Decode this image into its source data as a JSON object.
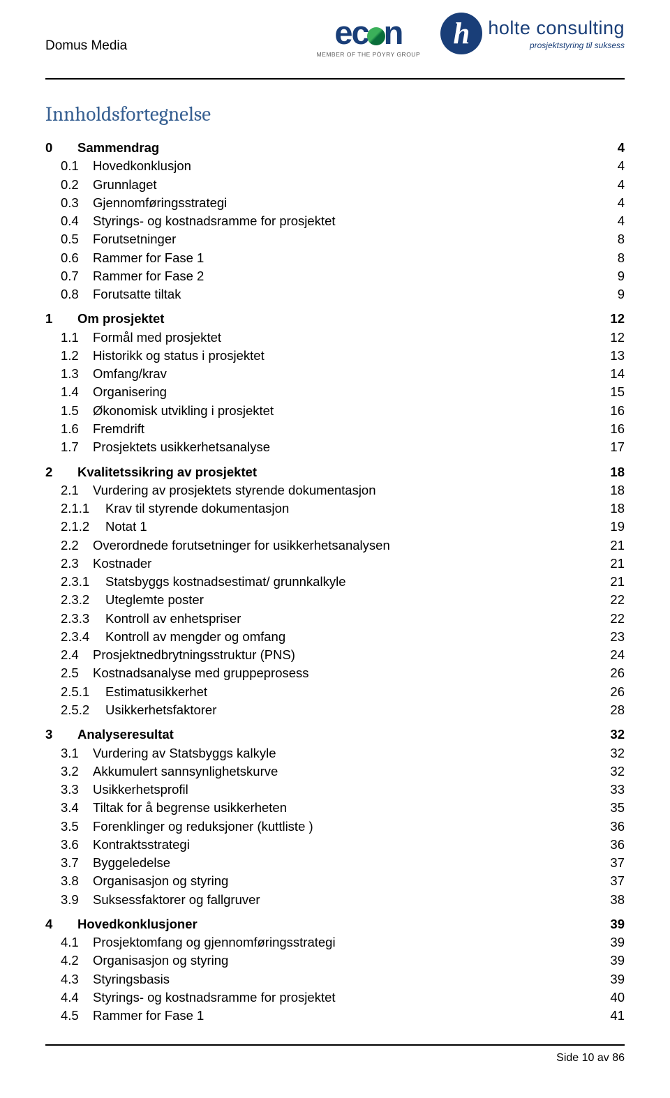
{
  "header": {
    "doc_title": "Domus Media",
    "econ": {
      "name": "econ",
      "sub": "MEMBER OF THE PÖYRY GROUP"
    },
    "holte": {
      "name": "holte consulting",
      "tag": "prosjektstyring til suksess"
    }
  },
  "toc_title": "Innholdsfortegnelse",
  "toc": [
    {
      "lvl": 1,
      "num": "0",
      "label": "Sammendrag",
      "page": "4",
      "bold": true,
      "first": true
    },
    {
      "lvl": 2,
      "num": "0.1",
      "label": "Hovedkonklusjon",
      "page": "4"
    },
    {
      "lvl": 2,
      "num": "0.2",
      "label": "Grunnlaget",
      "page": "4"
    },
    {
      "lvl": 2,
      "num": "0.3",
      "label": "Gjennomføringsstrategi",
      "page": "4"
    },
    {
      "lvl": 2,
      "num": "0.4",
      "label": "Styrings- og kostnadsramme for prosjektet",
      "page": "4"
    },
    {
      "lvl": 2,
      "num": "0.5",
      "label": "Forutsetninger",
      "page": "8"
    },
    {
      "lvl": 2,
      "num": "0.6",
      "label": "Rammer for Fase 1",
      "page": "8"
    },
    {
      "lvl": 2,
      "num": "0.7",
      "label": "Rammer for Fase 2",
      "page": "9"
    },
    {
      "lvl": 2,
      "num": "0.8",
      "label": "Forutsatte tiltak",
      "page": "9"
    },
    {
      "lvl": 1,
      "num": "1",
      "label": "Om prosjektet",
      "page": "12",
      "bold": true
    },
    {
      "lvl": 2,
      "num": "1.1",
      "label": "Formål med prosjektet",
      "page": "12"
    },
    {
      "lvl": 2,
      "num": "1.2",
      "label": "Historikk og status i prosjektet",
      "page": "13"
    },
    {
      "lvl": 2,
      "num": "1.3",
      "label": "Omfang/krav",
      "page": "14"
    },
    {
      "lvl": 2,
      "num": "1.4",
      "label": "Organisering",
      "page": "15"
    },
    {
      "lvl": 2,
      "num": "1.5",
      "label": "Økonomisk utvikling i prosjektet",
      "page": "16"
    },
    {
      "lvl": 2,
      "num": "1.6",
      "label": "Fremdrift",
      "page": "16"
    },
    {
      "lvl": 2,
      "num": "1.7",
      "label": "Prosjektets usikkerhetsanalyse",
      "page": "17"
    },
    {
      "lvl": 1,
      "num": "2",
      "label": "Kvalitetssikring av prosjektet",
      "page": "18",
      "bold": true
    },
    {
      "lvl": 2,
      "num": "2.1",
      "label": "Vurdering av prosjektets styrende dokumentasjon",
      "page": "18"
    },
    {
      "lvl": 3,
      "num": "2.1.1",
      "label": "Krav til styrende dokumentasjon",
      "page": "18"
    },
    {
      "lvl": 3,
      "num": "2.1.2",
      "label": "Notat 1",
      "page": "19"
    },
    {
      "lvl": 2,
      "num": "2.2",
      "label": "Overordnede forutsetninger for usikkerhetsanalysen",
      "page": "21"
    },
    {
      "lvl": 2,
      "num": "2.3",
      "label": "Kostnader",
      "page": "21"
    },
    {
      "lvl": 3,
      "num": "2.3.1",
      "label": "Statsbyggs kostnadsestimat/ grunnkalkyle",
      "page": "21"
    },
    {
      "lvl": 3,
      "num": "2.3.2",
      "label": "Uteglemte poster",
      "page": "22"
    },
    {
      "lvl": 3,
      "num": "2.3.3",
      "label": "Kontroll av enhetspriser",
      "page": "22"
    },
    {
      "lvl": 3,
      "num": "2.3.4",
      "label": "Kontroll av mengder og omfang",
      "page": "23"
    },
    {
      "lvl": 2,
      "num": "2.4",
      "label": "Prosjektnedbrytningsstruktur (PNS)",
      "page": "24"
    },
    {
      "lvl": 2,
      "num": "2.5",
      "label": "Kostnadsanalyse med gruppeprosess",
      "page": "26"
    },
    {
      "lvl": 3,
      "num": "2.5.1",
      "label": "Estimatusikkerhet",
      "page": "26"
    },
    {
      "lvl": 3,
      "num": "2.5.2",
      "label": "Usikkerhetsfaktorer",
      "page": "28"
    },
    {
      "lvl": 1,
      "num": "3",
      "label": "Analyseresultat",
      "page": "32",
      "bold": true
    },
    {
      "lvl": 2,
      "num": "3.1",
      "label": "Vurdering av Statsbyggs kalkyle",
      "page": "32"
    },
    {
      "lvl": 2,
      "num": "3.2",
      "label": "Akkumulert sannsynlighetskurve",
      "page": "32"
    },
    {
      "lvl": 2,
      "num": "3.3",
      "label": "Usikkerhetsprofil",
      "page": "33"
    },
    {
      "lvl": 2,
      "num": "3.4",
      "label": "Tiltak for å begrense usikkerheten",
      "page": "35"
    },
    {
      "lvl": 2,
      "num": "3.5",
      "label": "Forenklinger og reduksjoner (kuttliste )",
      "page": "36"
    },
    {
      "lvl": 2,
      "num": "3.6",
      "label": "Kontraktsstrategi",
      "page": "36"
    },
    {
      "lvl": 2,
      "num": "3.7",
      "label": "Byggeledelse",
      "page": "37"
    },
    {
      "lvl": 2,
      "num": "3.8",
      "label": "Organisasjon og styring",
      "page": "37"
    },
    {
      "lvl": 2,
      "num": "3.9",
      "label": "Suksessfaktorer og fallgruver",
      "page": "38"
    },
    {
      "lvl": 1,
      "num": "4",
      "label": "Hovedkonklusjoner",
      "page": "39",
      "bold": true
    },
    {
      "lvl": 2,
      "num": "4.1",
      "label": "Prosjektomfang og gjennomføringsstrategi",
      "page": "39"
    },
    {
      "lvl": 2,
      "num": "4.2",
      "label": "Organisasjon og styring",
      "page": "39"
    },
    {
      "lvl": 2,
      "num": "4.3",
      "label": "Styringsbasis",
      "page": "39"
    },
    {
      "lvl": 2,
      "num": "4.4",
      "label": "Styrings- og kostnadsramme for prosjektet",
      "page": "40"
    },
    {
      "lvl": 2,
      "num": "4.5",
      "label": "Rammer for Fase 1",
      "page": "41"
    }
  ],
  "footer": {
    "text": "Side 10 av 86"
  }
}
